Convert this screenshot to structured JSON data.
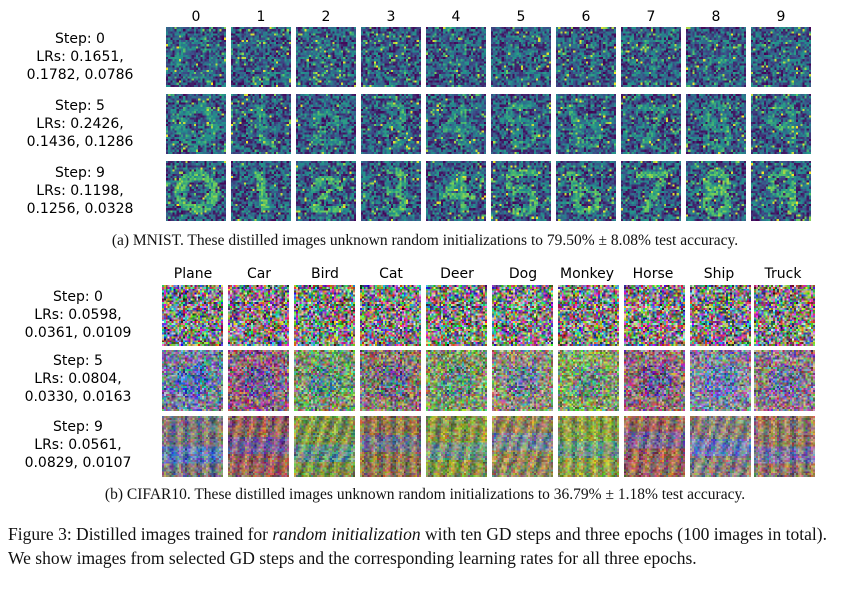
{
  "mnist": {
    "class_labels": [
      "0",
      "1",
      "2",
      "3",
      "4",
      "5",
      "6",
      "7",
      "8",
      "9"
    ],
    "rows": [
      {
        "step": "Step: 0",
        "lrs_line1": "LRs: 0.1651,",
        "lrs_line2": "0.1782, 0.0786"
      },
      {
        "step": "Step: 5",
        "lrs_line1": "LRs: 0.2426,",
        "lrs_line2": "0.1436, 0.1286"
      },
      {
        "step": "Step: 9",
        "lrs_line1": "LRs: 0.1198,",
        "lrs_line2": "0.1256, 0.0328"
      }
    ],
    "caption": "(a) MNIST. These distilled images unknown random initializations to 79.50% ± 8.08% test accuracy."
  },
  "cifar": {
    "class_labels": [
      "Plane",
      "Car",
      "Bird",
      "Cat",
      "Deer",
      "Dog",
      "Monkey",
      "Horse",
      "Ship",
      "Truck"
    ],
    "rows": [
      {
        "step": "Step: 0",
        "lrs_line1": "LRs: 0.0598,",
        "lrs_line2": "0.0361, 0.0109"
      },
      {
        "step": "Step: 5",
        "lrs_line1": "LRs: 0.0804,",
        "lrs_line2": "0.0330, 0.0163"
      },
      {
        "step": "Step: 9",
        "lrs_line1": "LRs: 0.0561,",
        "lrs_line2": "0.0829, 0.0107"
      }
    ],
    "caption": "(b) CIFAR10. These distilled images unknown random initializations to 36.79% ± 1.18% test accuracy."
  },
  "figure_caption": {
    "prefix": "Figure 3: Distilled images trained for ",
    "emphasis": "random initialization",
    "suffix": " with ten GD steps and three epochs (100 images in total). We show images from selected GD steps and the corresponding learning rates for all three epochs."
  },
  "colors": {
    "mnist_dark": "#2b0a4d",
    "mnist_mid": "#2a7a8c",
    "mnist_bright": "#f5e22a"
  }
}
